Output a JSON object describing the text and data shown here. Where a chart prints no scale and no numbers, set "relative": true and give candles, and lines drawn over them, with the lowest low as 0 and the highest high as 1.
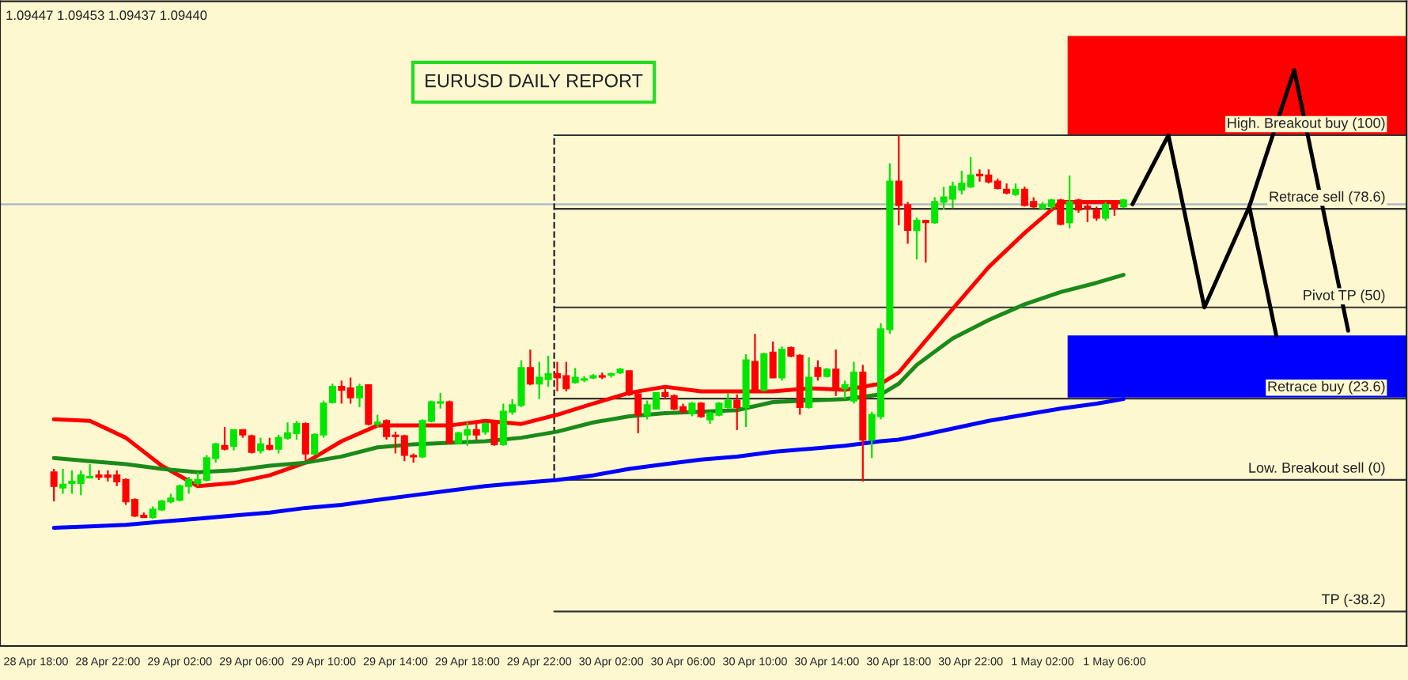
{
  "chart_data": {
    "type": "candlestick",
    "relative": true,
    "title": "EURUSD DAILY REPORT",
    "annotations": [
      "1.09447 1.09453 1.09437 1.09440"
    ],
    "categories": [
      "28 Apr 18:00",
      null,
      null,
      null,
      null,
      null,
      null,
      null,
      "28 Apr 22:00",
      null,
      null,
      null,
      null,
      null,
      null,
      null,
      "29 Apr 02:00",
      null,
      null,
      null,
      null,
      null,
      null,
      null,
      "29 Apr 06:00",
      null,
      null,
      null,
      null,
      null,
      null,
      null,
      "29 Apr 10:00",
      null,
      null,
      null,
      null,
      null,
      null,
      null,
      "29 Apr 14:00",
      null,
      null,
      null,
      null,
      null,
      null,
      null,
      "29 Apr 18:00",
      null,
      null,
      null,
      null,
      null,
      null,
      null,
      "29 Apr 22:00",
      null,
      null,
      null,
      null,
      null,
      null,
      null,
      "30 Apr 02:00",
      null,
      null,
      null,
      null,
      null,
      null,
      null,
      "30 Apr 06:00",
      null,
      null,
      null,
      null,
      null,
      null,
      null,
      "30 Apr 10:00",
      null,
      null,
      null,
      null,
      null,
      null,
      null,
      "30 Apr 14:00",
      null,
      null,
      null,
      null,
      null,
      null,
      null,
      "30 Apr 18:00",
      null,
      null,
      null,
      null,
      null,
      null,
      null,
      "30 Apr 22:00",
      null,
      null,
      null,
      null,
      null,
      null,
      null,
      "1 May 02:00",
      null,
      null,
      null,
      null,
      null,
      null,
      null,
      "1 May 06:00",
      null,
      null,
      null,
      null,
      null,
      null,
      null,
      null,
      null,
      null,
      null,
      null,
      null,
      null,
      null,
      null,
      null,
      null,
      null,
      null,
      null,
      null,
      null,
      null,
      null,
      null,
      null,
      null,
      null,
      null,
      null,
      null
    ],
    "ohlc": [
      null,
      null,
      [
        0.121,
        0.13,
        0.045,
        0.085
      ],
      [
        0.081,
        0.13,
        0.065,
        0.089
      ],
      [
        0.093,
        0.126,
        0.065,
        0.097
      ],
      [
        0.093,
        0.126,
        0.061,
        0.113
      ],
      [
        0.107,
        0.142,
        0.105,
        0.109
      ],
      [
        0.113,
        0.126,
        0.101,
        0.109
      ],
      [
        0.113,
        0.126,
        0.097,
        0.109
      ],
      [
        0.113,
        0.126,
        0.085,
        0.097
      ],
      [
        0.101,
        0.105,
        0.036,
        0.045
      ],
      [
        0.049,
        0.053,
        0.004,
        0.008
      ],
      [
        0.008,
        0.016,
        0.004,
        0.004
      ],
      [
        0.004,
        0.032,
        0,
        0.024
      ],
      [
        0.024,
        0.049,
        0.02,
        0.045
      ],
      [
        0.045,
        0.065,
        0.04,
        0.053
      ],
      [
        0.049,
        0.089,
        0.045,
        0.085
      ],
      [
        0.085,
        0.109,
        0.065,
        0.101
      ],
      [
        0.093,
        0.121,
        0.085,
        0.101
      ],
      [
        0.101,
        0.166,
        0.097,
        0.158
      ],
      [
        0.158,
        0.198,
        0.146,
        0.194
      ],
      [
        0.19,
        0.239,
        0.178,
        0.182
      ],
      [
        0.19,
        0.231,
        0.178,
        0.231
      ],
      [
        0.231,
        0.231,
        0.211,
        0.219
      ],
      [
        0.215,
        0.219,
        0.17,
        0.174
      ],
      [
        0.178,
        0.211,
        0.17,
        0.194
      ],
      [
        0.19,
        0.211,
        0.178,
        0.182
      ],
      [
        0.182,
        0.219,
        0.17,
        0.211
      ],
      [
        0.211,
        0.251,
        0.206,
        0.223
      ],
      [
        0.223,
        0.255,
        0.206,
        0.247
      ],
      [
        0.247,
        0.251,
        0.15,
        0.17
      ],
      [
        0.17,
        0.223,
        0.166,
        0.219
      ],
      [
        0.219,
        0.308,
        0.211,
        0.3
      ],
      [
        0.304,
        0.352,
        0.3,
        0.344
      ],
      [
        0.344,
        0.36,
        0.3,
        0.336
      ],
      [
        0.34,
        0.368,
        0.3,
        0.316
      ],
      [
        0.316,
        0.352,
        0.291,
        0.344
      ],
      [
        0.348,
        0.348,
        0.243,
        0.247
      ],
      [
        0.247,
        0.271,
        0.239,
        0.251
      ],
      [
        0.255,
        0.259,
        0.206,
        0.215
      ],
      [
        0.217,
        0.227,
        0.17,
        0.215
      ],
      [
        0.215,
        0.219,
        0.15,
        0.166
      ],
      [
        0.164,
        0.17,
        0.146,
        0.162
      ],
      [
        0.162,
        0.259,
        0.158,
        0.255
      ],
      [
        0.255,
        0.308,
        0.251,
        0.304
      ],
      [
        0.302,
        0.328,
        0.287,
        0.304
      ],
      [
        0.304,
        0.308,
        0.194,
        0.198
      ],
      [
        0.198,
        0.227,
        0.194,
        0.223
      ],
      [
        0.219,
        0.251,
        0.19,
        0.231
      ],
      [
        0.231,
        0.247,
        0.206,
        0.219
      ],
      [
        0.227,
        0.251,
        0.219,
        0.247
      ],
      [
        0.247,
        0.251,
        0.19,
        0.194
      ],
      [
        0.194,
        0.3,
        0.19,
        0.279
      ],
      [
        0.279,
        0.312,
        0.271,
        0.296
      ],
      [
        0.296,
        0.413,
        0.291,
        0.393
      ],
      [
        0.393,
        0.441,
        0.348,
        0.352
      ],
      [
        0.352,
        0.409,
        0.312,
        0.368
      ],
      [
        0.364,
        0.425,
        0.344,
        0.377
      ],
      [
        0.377,
        0.409,
        0.332,
        0.368
      ],
      [
        0.372,
        0.409,
        0.332,
        0.34
      ],
      [
        0.356,
        0.393,
        0.352,
        0.368
      ],
      [
        0.362,
        0.372,
        0.356,
        0.364
      ],
      [
        0.368,
        0.377,
        0.364,
        0.372
      ],
      [
        0.372,
        0.381,
        0.364,
        0.37
      ],
      [
        0.375,
        0.381,
        0.368,
        0.377
      ],
      [
        0.381,
        0.393,
        0.377,
        0.389
      ],
      [
        0.385,
        0.385,
        0.32,
        0.324
      ],
      [
        0.324,
        0.328,
        0.223,
        0.271
      ],
      [
        0.271,
        0.308,
        0.259,
        0.296
      ],
      [
        0.287,
        0.328,
        0.287,
        0.328
      ],
      [
        0.328,
        0.348,
        0.312,
        0.32
      ],
      [
        0.32,
        0.324,
        0.283,
        0.287
      ],
      [
        0.291,
        0.3,
        0.275,
        0.279
      ],
      [
        0.275,
        0.304,
        0.267,
        0.3
      ],
      [
        0.3,
        0.304,
        0.263,
        0.267
      ],
      [
        0.259,
        0.279,
        0.247,
        0.275
      ],
      [
        0.271,
        0.304,
        0.267,
        0.3
      ],
      [
        0.291,
        0.328,
        0.287,
        0.308
      ],
      [
        0.308,
        0.324,
        0.231,
        0.291
      ],
      [
        0.291,
        0.429,
        0.239,
        0.413
      ],
      [
        0.409,
        0.482,
        0.332,
        0.336
      ],
      [
        0.336,
        0.433,
        0.332,
        0.429
      ],
      [
        0.433,
        0.462,
        0.368,
        0.368
      ],
      [
        0.368,
        0.449,
        0.36,
        0.441
      ],
      [
        0.445,
        0.449,
        0.421,
        0.425
      ],
      [
        0.425,
        0.429,
        0.271,
        0.291
      ],
      [
        0.291,
        0.421,
        0.287,
        0.368
      ],
      [
        0.393,
        0.413,
        0.36,
        0.372
      ],
      [
        0.372,
        0.393,
        0.368,
        0.389
      ],
      [
        0.389,
        0.441,
        0.32,
        0.34
      ],
      [
        0.34,
        0.36,
        0.312,
        0.348
      ],
      [
        0.308,
        0.409,
        0.3,
        0.381
      ],
      [
        0.381,
        0.401,
        0.097,
        0.206
      ],
      [
        0.206,
        0.279,
        0.158,
        0.271
      ],
      [
        0.267,
        0.51,
        0.259,
        0.494
      ],
      [
        0.494,
        0.927,
        0.482,
        0.879
      ],
      [
        0.879,
        1.0,
        0.765,
        0.818
      ],
      [
        0.818,
        0.826,
        0.717,
        0.753
      ],
      [
        0.753,
        0.785,
        0.676,
        0.777
      ],
      [
        0.777,
        0.777,
        0.668,
        0.773
      ],
      [
        0.773,
        0.838,
        0.769,
        0.826
      ],
      [
        0.826,
        0.866,
        0.806,
        0.838
      ],
      [
        0.834,
        0.879,
        0.81,
        0.866
      ],
      [
        0.858,
        0.907,
        0.846,
        0.874
      ],
      [
        0.866,
        0.943,
        0.862,
        0.895
      ],
      [
        0.897,
        0.911,
        0.879,
        0.895
      ],
      [
        0.895,
        0.911,
        0.874,
        0.879
      ],
      [
        0.879,
        0.887,
        0.858,
        0.862
      ],
      [
        0.858,
        0.874,
        0.846,
        0.85
      ],
      [
        0.846,
        0.874,
        0.842,
        0.858
      ],
      [
        0.858,
        0.866,
        0.814,
        0.818
      ],
      [
        0.826,
        0.838,
        0.81,
        0.814
      ],
      [
        0.81,
        0.826,
        0.806,
        0.818
      ],
      [
        0.814,
        0.834,
        0.806,
        0.83
      ],
      [
        0.83,
        0.834,
        0.765,
        0.769
      ],
      [
        0.773,
        0.895,
        0.757,
        0.826
      ],
      [
        0.83,
        0.834,
        0.798,
        0.806
      ],
      [
        0.814,
        0.826,
        0.773,
        0.81
      ],
      [
        0.806,
        0.814,
        0.777,
        0.785
      ],
      [
        0.785,
        0.826,
        0.777,
        0.818
      ],
      [
        0.822,
        0.826,
        0.79,
        0.81
      ],
      [
        0.814,
        0.834,
        0.81,
        0.83
      ],
      null,
      null,
      null,
      null,
      null,
      null,
      null,
      null,
      null,
      null,
      null,
      null,
      null,
      null,
      null,
      null,
      null,
      null,
      null,
      null,
      null,
      null,
      null,
      null,
      null,
      null,
      null,
      null,
      null,
      null,
      null
    ],
    "series": [
      {
        "type": "line",
        "color": "#ff0000",
        "values": [
          null,
          null,
          0.259,
          null,
          null,
          null,
          0.255,
          null,
          null,
          null,
          0.211,
          null,
          null,
          null,
          0.138,
          null,
          null,
          null,
          0.085,
          null,
          null,
          null,
          0.093,
          null,
          null,
          null,
          0.113,
          null,
          null,
          null,
          0.146,
          null,
          null,
          null,
          0.202,
          null,
          null,
          null,
          0.243,
          null,
          null,
          null,
          0.243,
          null,
          null,
          null,
          0.243,
          null,
          null,
          null,
          0.255,
          null,
          null,
          null,
          0.247,
          null,
          null,
          null,
          0.271,
          null,
          null,
          null,
          0.3,
          null,
          null,
          null,
          0.328,
          null,
          null,
          null,
          0.344,
          null,
          null,
          null,
          0.332,
          null,
          null,
          null,
          0.332,
          null,
          null,
          null,
          0.332,
          null,
          null,
          null,
          0.34,
          null,
          null,
          null,
          0.336,
          null,
          null,
          null,
          0.352,
          null,
          0.381,
          null,
          0.437,
          null,
          null,
          null,
          0.547,
          null,
          null,
          null,
          0.656,
          null,
          null,
          null,
          0.745,
          null,
          null,
          null,
          0.826,
          null,
          null,
          null,
          0.826,
          null,
          null,
          0.826,
          null,
          null,
          null,
          null,
          null,
          null,
          null,
          null,
          null,
          null,
          null,
          null,
          null,
          null,
          null,
          null,
          null,
          null,
          null,
          null,
          null,
          null,
          null,
          null,
          null,
          null,
          null,
          null,
          null,
          null,
          null
        ]
      },
      {
        "type": "line",
        "color": "#1a8a1a",
        "values": [
          null,
          null,
          0.158,
          null,
          null,
          null,
          0.15,
          null,
          null,
          null,
          0.142,
          null,
          null,
          null,
          0.13,
          null,
          null,
          null,
          0.121,
          null,
          null,
          null,
          0.126,
          null,
          null,
          null,
          0.138,
          null,
          null,
          null,
          0.146,
          null,
          null,
          null,
          0.162,
          null,
          null,
          null,
          0.186,
          null,
          null,
          null,
          0.194,
          null,
          null,
          null,
          0.198,
          null,
          null,
          null,
          0.202,
          null,
          null,
          null,
          0.211,
          null,
          null,
          null,
          0.227,
          null,
          null,
          null,
          0.251,
          null,
          null,
          null,
          0.267,
          null,
          null,
          null,
          0.275,
          null,
          null,
          null,
          0.279,
          null,
          null,
          null,
          0.283,
          null,
          null,
          null,
          0.304,
          null,
          null,
          null,
          0.308,
          null,
          null,
          null,
          0.312,
          null,
          null,
          null,
          0.324,
          null,
          0.352,
          null,
          0.401,
          null,
          null,
          null,
          0.47,
          null,
          null,
          null,
          0.518,
          null,
          null,
          null,
          0.559,
          null,
          null,
          null,
          0.591,
          null,
          null,
          null,
          0.615,
          null,
          null,
          0.636,
          null,
          null,
          null,
          null,
          null,
          null,
          null,
          null,
          null,
          null,
          null,
          null,
          null,
          null,
          null,
          null,
          null,
          null,
          null,
          null,
          null,
          null,
          null,
          null,
          null,
          null,
          null,
          null,
          null,
          null,
          null
        ]
      },
      {
        "type": "line",
        "color": "#0000ff",
        "values": [
          null,
          null,
          -0.024,
          null,
          null,
          null,
          -0.02,
          null,
          null,
          null,
          -0.016,
          null,
          null,
          null,
          -0.008,
          null,
          null,
          null,
          0,
          null,
          null,
          null,
          0.008,
          null,
          null,
          null,
          0.016,
          null,
          null,
          null,
          0.028,
          null,
          null,
          null,
          0.036,
          null,
          null,
          null,
          0.049,
          null,
          null,
          null,
          0.061,
          null,
          null,
          null,
          0.073,
          null,
          null,
          null,
          0.085,
          null,
          null,
          null,
          0.093,
          null,
          null,
          null,
          0.101,
          null,
          null,
          null,
          0.113,
          null,
          null,
          null,
          0.13,
          null,
          null,
          null,
          0.142,
          null,
          null,
          null,
          0.154,
          null,
          null,
          null,
          0.162,
          null,
          null,
          null,
          0.174,
          null,
          null,
          null,
          0.182,
          null,
          null,
          null,
          0.19,
          null,
          null,
          null,
          0.202,
          null,
          0.206,
          null,
          0.215,
          null,
          null,
          null,
          0.235,
          null,
          null,
          null,
          0.255,
          null,
          null,
          null,
          0.271,
          null,
          null,
          null,
          0.287,
          null,
          null,
          null,
          0.3,
          null,
          null,
          0.312,
          null,
          null,
          null,
          null,
          null,
          null,
          null,
          null,
          null,
          null,
          null,
          null,
          null,
          null,
          null,
          null,
          null,
          null,
          null,
          null,
          null,
          null,
          null,
          null,
          null,
          null,
          null,
          null,
          null,
          null,
          null
        ]
      },
      {
        "type": "line",
        "color": "#000000",
        "values": [
          null,
          null,
          null,
          null,
          null,
          null,
          null,
          null,
          null,
          null,
          null,
          null,
          null,
          null,
          null,
          null,
          null,
          null,
          null,
          null,
          null,
          null,
          null,
          null,
          null,
          null,
          null,
          null,
          null,
          null,
          null,
          null,
          null,
          null,
          null,
          null,
          null,
          null,
          null,
          null,
          null,
          null,
          null,
          null,
          null,
          null,
          null,
          null,
          null,
          null,
          null,
          null,
          null,
          null,
          null,
          null,
          null,
          null,
          null,
          null,
          null,
          null,
          null,
          null,
          null,
          null,
          null,
          null,
          null,
          null,
          null,
          null,
          null,
          null,
          null,
          null,
          null,
          null,
          null,
          null,
          null,
          null,
          null,
          null,
          null,
          null,
          null,
          null,
          null,
          null,
          null,
          null,
          null,
          null,
          null,
          null,
          null,
          null,
          null,
          null,
          null,
          null,
          null,
          null,
          null,
          null,
          null,
          null,
          null,
          null,
          null,
          null,
          null,
          null,
          null,
          null,
          null,
          null,
          null,
          null,
          null,
          null,
          0.82,
          null,
          null,
          null,
          1.0,
          null,
          null,
          null,
          0.551,
          null,
          null,
          null,
          null,
          0.814,
          null,
          null,
          0.478,
          null,
          null,
          null,
          null,
          null,
          null,
          null,
          null,
          null,
          null,
          null,
          null,
          null,
          null
        ]
      },
      {
        "type": "line",
        "color": "#000000",
        "values": [
          null,
          null,
          null,
          null,
          null,
          null,
          null,
          null,
          null,
          null,
          null,
          null,
          null,
          null,
          null,
          null,
          null,
          null,
          null,
          null,
          null,
          null,
          null,
          null,
          null,
          null,
          null,
          null,
          null,
          null,
          null,
          null,
          null,
          null,
          null,
          null,
          null,
          null,
          null,
          null,
          null,
          null,
          null,
          null,
          null,
          null,
          null,
          null,
          null,
          null,
          null,
          null,
          null,
          null,
          null,
          null,
          null,
          null,
          null,
          null,
          null,
          null,
          null,
          null,
          null,
          null,
          null,
          null,
          null,
          null,
          null,
          null,
          null,
          null,
          null,
          null,
          null,
          null,
          null,
          null,
          null,
          null,
          null,
          null,
          null,
          null,
          null,
          null,
          null,
          null,
          null,
          null,
          null,
          null,
          null,
          null,
          null,
          null,
          null,
          null,
          null,
          null,
          null,
          null,
          null,
          null,
          null,
          null,
          null,
          null,
          null,
          null,
          null,
          null,
          null,
          null,
          null,
          null,
          null,
          null,
          null,
          null,
          null,
          null,
          null,
          null,
          null,
          null,
          null,
          null,
          null,
          null,
          null,
          null,
          null,
          0.814,
          null,
          null,
          null,
          null,
          1.17,
          null,
          null,
          null,
          null,
          null,
          0.49,
          null,
          null,
          null,
          null,
          null,
          null
        ]
      }
    ],
    "ref_lines": [
      {
        "axis": "y",
        "value": 0.82,
        "color": "#a8b8c8"
      },
      {
        "axis": "y",
        "value": 1.0,
        "label": "High. Breakout buy (100)",
        "color": "#333333"
      },
      {
        "axis": "y",
        "value": 0.808,
        "label": "Retrace sell (78.6)",
        "color": "#333333"
      },
      {
        "axis": "y",
        "value": 0.551,
        "label": "Pivot TP (50)",
        "color": "#333333"
      },
      {
        "axis": "y",
        "value": 0.313,
        "label": "Retrace buy (23.6)",
        "color": "#333333"
      },
      {
        "axis": "y",
        "value": 0.101,
        "label": "Low. Breakout sell (0)",
        "color": "#333333"
      },
      {
        "axis": "y",
        "value": -0.242,
        "label": "TP (-38.2)",
        "color": "#333333"
      }
    ],
    "bands": [
      {
        "axis": "y",
        "from": 1.0,
        "to": 1.259,
        "color": "#ff0000"
      },
      {
        "axis": "y",
        "from": 0.316,
        "to": 0.478,
        "color": "#0000ff"
      }
    ],
    "tick_labels": "x",
    "grid": false,
    "legend": false
  }
}
